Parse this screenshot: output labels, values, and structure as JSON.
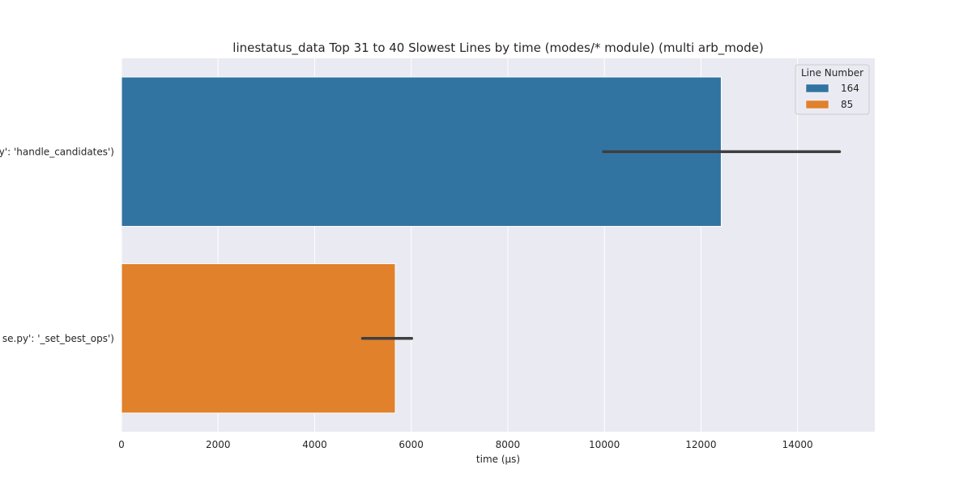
{
  "chart_data": {
    "type": "bar",
    "orientation": "horizontal",
    "title": "linestatus_data Top 31 to 40 Slowest Lines by time (modes/* module) (multi arb_mode)",
    "xlabel": "time (µs)",
    "ylabel": "",
    "xlim": [
      0,
      15600
    ],
    "x_ticks": [
      0,
      2000,
      4000,
      6000,
      8000,
      10000,
      12000,
      14000
    ],
    "grid": true,
    "legend": {
      "title": "Line Number",
      "position": "top-right"
    },
    "categories": [
      "y': 'handle_candidates')",
      "se.py': '_set_best_ops')"
    ],
    "series": [
      {
        "name": "164",
        "color": "#3274a1",
        "values": [
          12420,
          null
        ],
        "error": [
          [
            9980,
            14870
          ],
          null
        ]
      },
      {
        "name": "85",
        "color": "#e1812c",
        "values": [
          null,
          5670
        ],
        "error": [
          null,
          [
            4990,
            6010
          ]
        ]
      }
    ]
  }
}
